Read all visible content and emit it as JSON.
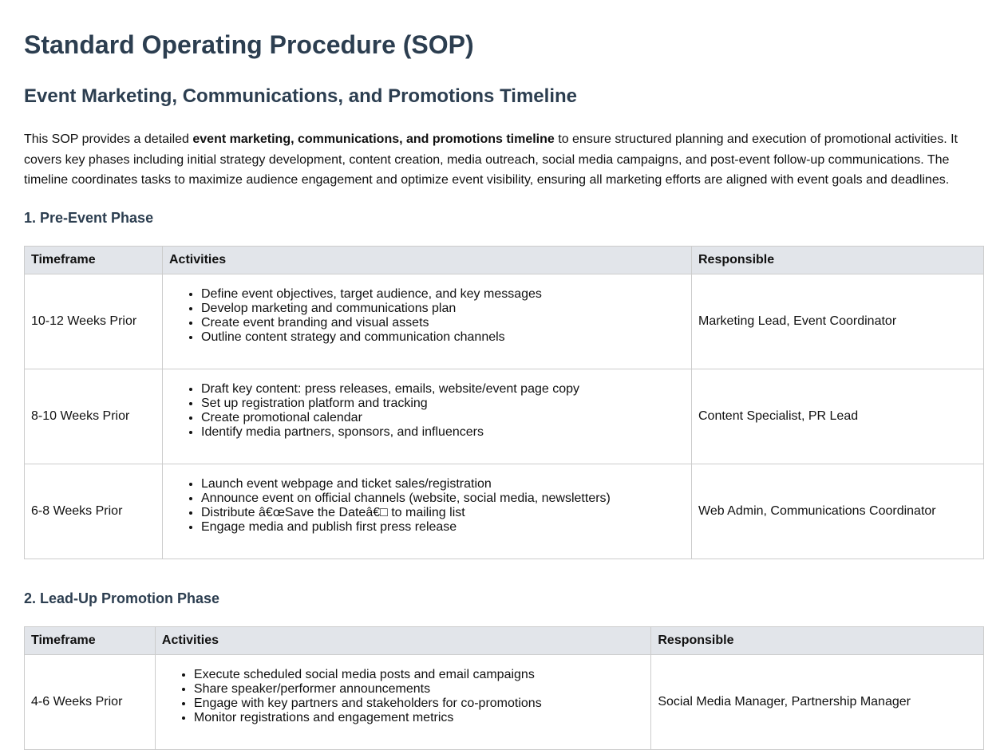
{
  "title": "Standard Operating Procedure (SOP)",
  "subtitle": "Event Marketing, Communications, and Promotions Timeline",
  "intro": {
    "before": "This SOP provides a detailed ",
    "bold": "event marketing, communications, and promotions timeline",
    "after": " to ensure structured planning and execution of promotional activities. It covers key phases including initial strategy development, content creation, media outreach, social media campaigns, and post-event follow-up communications. The timeline coordinates tasks to maximize audience engagement and optimize event visibility, ensuring all marketing efforts are aligned with event goals and deadlines."
  },
  "sections": [
    {
      "heading": "1. Pre-Event Phase",
      "headers": [
        "Timeframe",
        "Activities",
        "Responsible"
      ],
      "rows": [
        {
          "timeframe": "10-12 Weeks Prior",
          "activities": [
            "Define event objectives, target audience, and key messages",
            "Develop marketing and communications plan",
            "Create event branding and visual assets",
            "Outline content strategy and communication channels"
          ],
          "responsible": "Marketing Lead, Event Coordinator"
        },
        {
          "timeframe": "8-10 Weeks Prior",
          "activities": [
            "Draft key content: press releases, emails, website/event page copy",
            "Set up registration platform and tracking",
            "Create promotional calendar",
            "Identify media partners, sponsors, and influencers"
          ],
          "responsible": "Content Specialist, PR Lead"
        },
        {
          "timeframe": "6-8 Weeks Prior",
          "activities": [
            "Launch event webpage and ticket sales/registration",
            "Announce event on official channels (website, social media, newsletters)",
            "Distribute â€œSave the Dateâ€□ to mailing list",
            "Engage media and publish first press release"
          ],
          "responsible": "Web Admin, Communications Coordinator"
        }
      ]
    },
    {
      "heading": "2. Lead-Up Promotion Phase",
      "headers": [
        "Timeframe",
        "Activities",
        "Responsible"
      ],
      "rows": [
        {
          "timeframe": "4-6 Weeks Prior",
          "activities": [
            "Execute scheduled social media posts and email campaigns",
            "Share speaker/performer announcements",
            "Engage with key partners and stakeholders for co-promotions",
            "Monitor registrations and engagement metrics"
          ],
          "responsible": "Social Media Manager, Partnership Manager"
        }
      ]
    }
  ]
}
